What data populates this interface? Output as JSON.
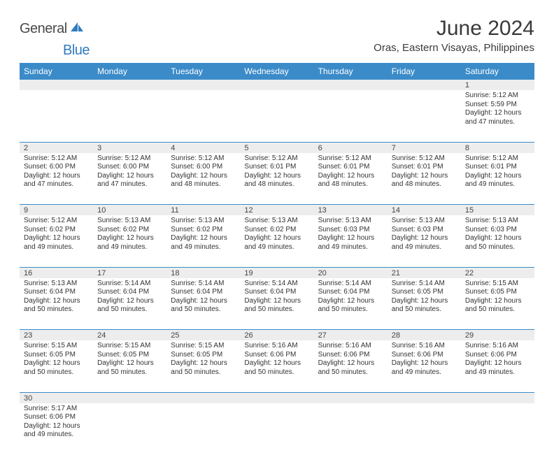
{
  "brand": {
    "part1": "General",
    "part2": "Blue"
  },
  "title": "June 2024",
  "location": "Oras, Eastern Visayas, Philippines",
  "colors": {
    "header_bg": "#3b8bc9",
    "header_text": "#ffffff",
    "daynum_bg": "#ededed",
    "cell_border": "#3b8bc9",
    "body_text": "#333333",
    "brand_gray": "#4a4a4a",
    "brand_blue": "#2f7bbf",
    "page_bg": "#ffffff"
  },
  "typography": {
    "title_fontsize": 30,
    "location_fontsize": 15,
    "dayheader_fontsize": 12,
    "daynum_fontsize": 11,
    "cell_fontsize": 10
  },
  "weekdays": [
    "Sunday",
    "Monday",
    "Tuesday",
    "Wednesday",
    "Thursday",
    "Friday",
    "Saturday"
  ],
  "weeks": [
    [
      null,
      null,
      null,
      null,
      null,
      null,
      {
        "n": "1",
        "sr": "5:12 AM",
        "ss": "5:59 PM",
        "dl": "12 hours and 47 minutes."
      }
    ],
    [
      {
        "n": "2",
        "sr": "5:12 AM",
        "ss": "6:00 PM",
        "dl": "12 hours and 47 minutes."
      },
      {
        "n": "3",
        "sr": "5:12 AM",
        "ss": "6:00 PM",
        "dl": "12 hours and 47 minutes."
      },
      {
        "n": "4",
        "sr": "5:12 AM",
        "ss": "6:00 PM",
        "dl": "12 hours and 48 minutes."
      },
      {
        "n": "5",
        "sr": "5:12 AM",
        "ss": "6:01 PM",
        "dl": "12 hours and 48 minutes."
      },
      {
        "n": "6",
        "sr": "5:12 AM",
        "ss": "6:01 PM",
        "dl": "12 hours and 48 minutes."
      },
      {
        "n": "7",
        "sr": "5:12 AM",
        "ss": "6:01 PM",
        "dl": "12 hours and 48 minutes."
      },
      {
        "n": "8",
        "sr": "5:12 AM",
        "ss": "6:01 PM",
        "dl": "12 hours and 49 minutes."
      }
    ],
    [
      {
        "n": "9",
        "sr": "5:12 AM",
        "ss": "6:02 PM",
        "dl": "12 hours and 49 minutes."
      },
      {
        "n": "10",
        "sr": "5:13 AM",
        "ss": "6:02 PM",
        "dl": "12 hours and 49 minutes."
      },
      {
        "n": "11",
        "sr": "5:13 AM",
        "ss": "6:02 PM",
        "dl": "12 hours and 49 minutes."
      },
      {
        "n": "12",
        "sr": "5:13 AM",
        "ss": "6:02 PM",
        "dl": "12 hours and 49 minutes."
      },
      {
        "n": "13",
        "sr": "5:13 AM",
        "ss": "6:03 PM",
        "dl": "12 hours and 49 minutes."
      },
      {
        "n": "14",
        "sr": "5:13 AM",
        "ss": "6:03 PM",
        "dl": "12 hours and 49 minutes."
      },
      {
        "n": "15",
        "sr": "5:13 AM",
        "ss": "6:03 PM",
        "dl": "12 hours and 50 minutes."
      }
    ],
    [
      {
        "n": "16",
        "sr": "5:13 AM",
        "ss": "6:04 PM",
        "dl": "12 hours and 50 minutes."
      },
      {
        "n": "17",
        "sr": "5:14 AM",
        "ss": "6:04 PM",
        "dl": "12 hours and 50 minutes."
      },
      {
        "n": "18",
        "sr": "5:14 AM",
        "ss": "6:04 PM",
        "dl": "12 hours and 50 minutes."
      },
      {
        "n": "19",
        "sr": "5:14 AM",
        "ss": "6:04 PM",
        "dl": "12 hours and 50 minutes."
      },
      {
        "n": "20",
        "sr": "5:14 AM",
        "ss": "6:04 PM",
        "dl": "12 hours and 50 minutes."
      },
      {
        "n": "21",
        "sr": "5:14 AM",
        "ss": "6:05 PM",
        "dl": "12 hours and 50 minutes."
      },
      {
        "n": "22",
        "sr": "5:15 AM",
        "ss": "6:05 PM",
        "dl": "12 hours and 50 minutes."
      }
    ],
    [
      {
        "n": "23",
        "sr": "5:15 AM",
        "ss": "6:05 PM",
        "dl": "12 hours and 50 minutes."
      },
      {
        "n": "24",
        "sr": "5:15 AM",
        "ss": "6:05 PM",
        "dl": "12 hours and 50 minutes."
      },
      {
        "n": "25",
        "sr": "5:15 AM",
        "ss": "6:05 PM",
        "dl": "12 hours and 50 minutes."
      },
      {
        "n": "26",
        "sr": "5:16 AM",
        "ss": "6:06 PM",
        "dl": "12 hours and 50 minutes."
      },
      {
        "n": "27",
        "sr": "5:16 AM",
        "ss": "6:06 PM",
        "dl": "12 hours and 50 minutes."
      },
      {
        "n": "28",
        "sr": "5:16 AM",
        "ss": "6:06 PM",
        "dl": "12 hours and 49 minutes."
      },
      {
        "n": "29",
        "sr": "5:16 AM",
        "ss": "6:06 PM",
        "dl": "12 hours and 49 minutes."
      }
    ],
    [
      {
        "n": "30",
        "sr": "5:17 AM",
        "ss": "6:06 PM",
        "dl": "12 hours and 49 minutes."
      },
      null,
      null,
      null,
      null,
      null,
      null
    ]
  ],
  "labels": {
    "sunrise": "Sunrise:",
    "sunset": "Sunset:",
    "daylight": "Daylight:"
  }
}
